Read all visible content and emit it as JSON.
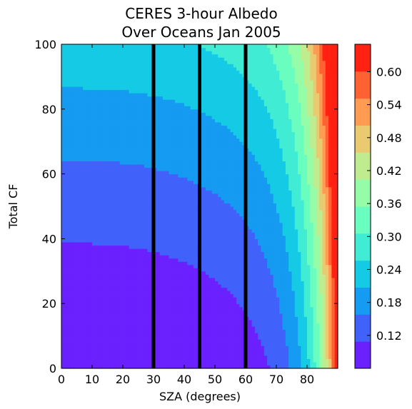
{
  "chart_data": {
    "type": "heatmap",
    "title_lines": [
      "CERES 3-hour Albedo",
      "Over Oceans Jan 2005"
    ],
    "xlabel": "SZA (degrees)",
    "ylabel": "Total CF",
    "xlim": [
      0,
      90
    ],
    "ylim": [
      0,
      100
    ],
    "x_ticks": [
      0,
      10,
      20,
      30,
      40,
      50,
      60,
      70,
      80
    ],
    "y_ticks": [
      0,
      20,
      40,
      60,
      80,
      100
    ],
    "vertical_lines_x": [
      30,
      45,
      60
    ],
    "vertical_line_color": "#000000",
    "colorbar": {
      "ticks": [
        0.12,
        0.18,
        0.24,
        0.3,
        0.36,
        0.42,
        0.48,
        0.54,
        0.6
      ],
      "tick_labels": [
        "0.12",
        "0.18",
        "0.24",
        "0.30",
        "0.36",
        "0.42",
        "0.48",
        "0.54",
        "0.60"
      ],
      "range": [
        0.06,
        0.65
      ],
      "levels": 12
    },
    "colormap": "rainbow",
    "grid": false
  }
}
